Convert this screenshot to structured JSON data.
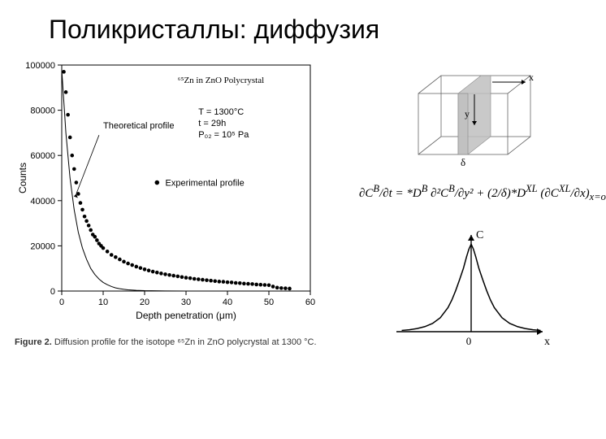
{
  "title": "Поликристаллы: диффузия",
  "chart": {
    "type": "scatter+line",
    "title_inside": "⁶⁵Zn in ZnO Polycrystal",
    "xlabel": "Depth penetration (μm)",
    "ylabel": "Counts",
    "xlim": [
      0,
      60
    ],
    "ylim": [
      0,
      100000
    ],
    "xtick_step": 10,
    "ytick_step": 20000,
    "conditions": [
      "T = 1300°C",
      "t = 29h",
      "P₀₂ = 10⁵ Pa"
    ],
    "theoretical_label": "Theoretical profile",
    "experimental_label": "Experimental profile",
    "marker_color": "#000000",
    "line_color": "#000000",
    "background": "#ffffff",
    "border_color": "#000000",
    "font_size_axis": 11,
    "font_size_annot": 11,
    "theoretical_points": [
      [
        0,
        98000
      ],
      [
        1,
        70000
      ],
      [
        2,
        50000
      ],
      [
        3,
        36000
      ],
      [
        4,
        26000
      ],
      [
        5,
        19000
      ],
      [
        6,
        14000
      ],
      [
        7,
        10000
      ],
      [
        8,
        7300
      ],
      [
        9,
        5300
      ],
      [
        10,
        3800
      ],
      [
        11,
        2800
      ],
      [
        12,
        2000
      ],
      [
        13,
        1400
      ],
      [
        14,
        1050
      ],
      [
        15,
        770
      ],
      [
        16,
        560
      ],
      [
        18,
        300
      ],
      [
        20,
        160
      ],
      [
        25,
        35
      ],
      [
        30,
        8
      ],
      [
        40,
        1
      ],
      [
        55,
        0
      ]
    ],
    "experimental_points": [
      [
        0.5,
        97000
      ],
      [
        1,
        88000
      ],
      [
        1.5,
        78000
      ],
      [
        2,
        68000
      ],
      [
        2.5,
        60000
      ],
      [
        3,
        54000
      ],
      [
        3.5,
        48000
      ],
      [
        4,
        43000
      ],
      [
        4.5,
        39000
      ],
      [
        5,
        36000
      ],
      [
        5.5,
        33000
      ],
      [
        6,
        31000
      ],
      [
        6.5,
        29000
      ],
      [
        7,
        27000
      ],
      [
        7.5,
        25000
      ],
      [
        8,
        24000
      ],
      [
        8.5,
        22500
      ],
      [
        9,
        21000
      ],
      [
        9.5,
        20000
      ],
      [
        10,
        19000
      ],
      [
        11,
        17500
      ],
      [
        12,
        16000
      ],
      [
        13,
        15000
      ],
      [
        14,
        14000
      ],
      [
        15,
        13000
      ],
      [
        16,
        12200
      ],
      [
        17,
        11500
      ],
      [
        18,
        10800
      ],
      [
        19,
        10200
      ],
      [
        20,
        9600
      ],
      [
        21,
        9100
      ],
      [
        22,
        8600
      ],
      [
        23,
        8200
      ],
      [
        24,
        7800
      ],
      [
        25,
        7400
      ],
      [
        26,
        7100
      ],
      [
        27,
        6800
      ],
      [
        28,
        6500
      ],
      [
        29,
        6200
      ],
      [
        30,
        5900
      ],
      [
        31,
        5700
      ],
      [
        32,
        5400
      ],
      [
        33,
        5200
      ],
      [
        34,
        5000
      ],
      [
        35,
        4800
      ],
      [
        36,
        4600
      ],
      [
        37,
        4400
      ],
      [
        38,
        4200
      ],
      [
        39,
        4100
      ],
      [
        40,
        3900
      ],
      [
        41,
        3800
      ],
      [
        42,
        3600
      ],
      [
        43,
        3500
      ],
      [
        44,
        3300
      ],
      [
        45,
        3200
      ],
      [
        46,
        3100
      ],
      [
        47,
        2900
      ],
      [
        48,
        2800
      ],
      [
        49,
        2700
      ],
      [
        50,
        2600
      ],
      [
        51,
        2000
      ],
      [
        52,
        1500
      ],
      [
        53,
        1300
      ],
      [
        54,
        1200
      ],
      [
        55,
        1100
      ]
    ]
  },
  "caption_prefix": "Figure 2.",
  "caption_text": " Diffusion profile for the isotope ⁶⁵Zn in ZnO polycrystal at 1300 °C.",
  "cube": {
    "label_x": "x",
    "label_y": "y",
    "label_delta": "δ",
    "line_color": "#666666",
    "slab_fill": "#bfbfbf",
    "slab_opacity": 0.85,
    "background": "#ffffff"
  },
  "equation_text": "∂C<sup>B</sup>/∂t = *D<sup>B</sup> ∂²C<sup>B</sup>/∂y² + (2/δ)*D<sup>XL</sup> (∂C<sup>XL</sup>/∂x)<sub>x=o</sub>",
  "cprofile": {
    "type": "line",
    "label_C": "C",
    "label_x": "x",
    "label_0": "0",
    "line_color": "#000000",
    "background": "#ffffff",
    "points": [
      [
        -90,
        2
      ],
      [
        -80,
        3
      ],
      [
        -70,
        5
      ],
      [
        -60,
        8
      ],
      [
        -50,
        13
      ],
      [
        -40,
        22
      ],
      [
        -30,
        38
      ],
      [
        -25,
        50
      ],
      [
        -20,
        65
      ],
      [
        -15,
        82
      ],
      [
        -10,
        100
      ],
      [
        -6,
        118
      ],
      [
        -3,
        130
      ],
      [
        0,
        138
      ],
      [
        3,
        130
      ],
      [
        6,
        118
      ],
      [
        10,
        100
      ],
      [
        15,
        82
      ],
      [
        20,
        65
      ],
      [
        25,
        50
      ],
      [
        30,
        38
      ],
      [
        40,
        22
      ],
      [
        50,
        13
      ],
      [
        60,
        8
      ],
      [
        70,
        5
      ],
      [
        80,
        3
      ],
      [
        90,
        2
      ]
    ]
  }
}
